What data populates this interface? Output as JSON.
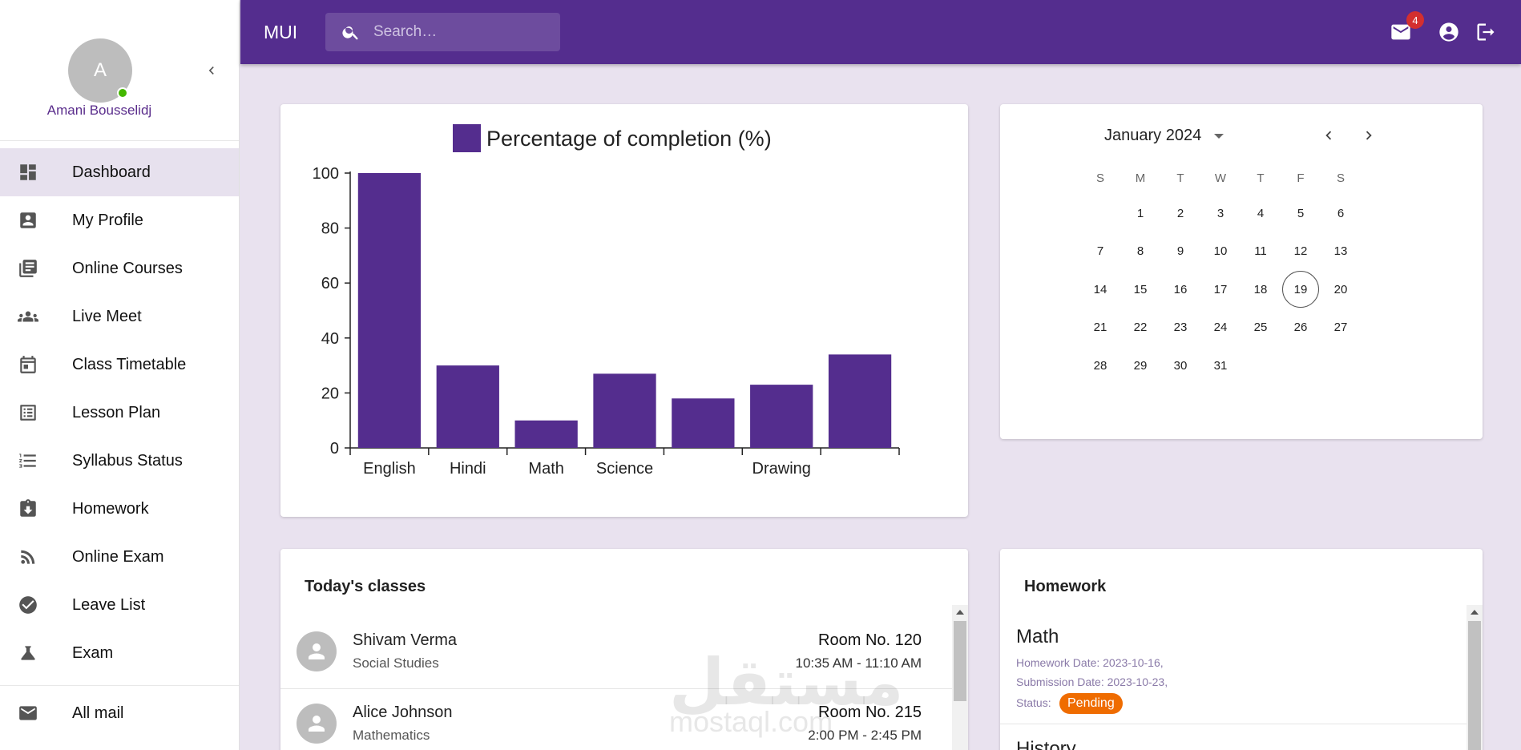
{
  "sidebar": {
    "avatar_initial": "A",
    "user_name": "Amani Bousselidj",
    "items": [
      {
        "label": "Dashboard",
        "icon": "dashboard-icon",
        "active": true
      },
      {
        "label": "My Profile",
        "icon": "profile-icon"
      },
      {
        "label": "Online Courses",
        "icon": "library-icon"
      },
      {
        "label": "Live Meet",
        "icon": "groups-icon"
      },
      {
        "label": "Class Timetable",
        "icon": "calendar-icon"
      },
      {
        "label": "Lesson Plan",
        "icon": "list-alt-icon"
      },
      {
        "label": "Syllabus Status",
        "icon": "format-list-icon"
      },
      {
        "label": "Homework",
        "icon": "assignment-icon"
      },
      {
        "label": "Online Exam",
        "icon": "rss-icon"
      },
      {
        "label": "Leave List",
        "icon": "check-circle-icon"
      },
      {
        "label": "Exam",
        "icon": "flask-icon"
      }
    ],
    "footer_items": [
      {
        "label": "All mail",
        "icon": "mail-icon"
      }
    ]
  },
  "topbar": {
    "brand": "MUI",
    "search_placeholder": "Search…",
    "mail_badge": "4"
  },
  "chart_data": {
    "type": "bar",
    "categories": [
      "English",
      "Hindi",
      "Math",
      "Science",
      "",
      "Drawing",
      ""
    ],
    "series": [
      {
        "name": "Percentage of completion (%)",
        "values": [
          100,
          30,
          10,
          27,
          18,
          23,
          34
        ],
        "color": "#542d8e"
      }
    ],
    "xlabel": "",
    "ylabel": "",
    "ylim": [
      0,
      100
    ],
    "yticks": [
      0,
      20,
      40,
      60,
      80,
      100
    ],
    "grid": false,
    "legend": "top"
  },
  "calendar": {
    "month_label": "January 2024",
    "weekdays": [
      "S",
      "M",
      "T",
      "W",
      "T",
      "F",
      "S"
    ],
    "first_weekday": 1,
    "days_in_month": 31,
    "today": 19
  },
  "classes": {
    "title": "Today's classes",
    "rows": [
      {
        "name": "Shivam Verma",
        "subject": "Social Studies",
        "room": "Room No. 120",
        "time": "10:35 AM - 11:10 AM"
      },
      {
        "name": "Alice Johnson",
        "subject": "Mathematics",
        "room": "Room No. 215",
        "time": "2:00 PM - 2:45 PM"
      }
    ]
  },
  "homework": {
    "title": "Homework",
    "items": [
      {
        "subject": "Math",
        "homework_date": "Homework Date: 2023-10-16,",
        "submission_date": "Submission Date: 2023-10-23,",
        "status_label": "Status:",
        "status": "Pending"
      },
      {
        "subject": "History"
      }
    ]
  },
  "watermark": {
    "text_ar": "مستقل",
    "text_en": "mostaql.com"
  }
}
